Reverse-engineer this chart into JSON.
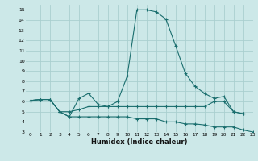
{
  "background_color": "#cce8e8",
  "grid_color": "#aacfcf",
  "line_color": "#1a6e6e",
  "xlabel": "Humidex (Indice chaleur)",
  "xlim": [
    -0.5,
    23
  ],
  "ylim": [
    3,
    15.5
  ],
  "xticks": [
    0,
    1,
    2,
    3,
    4,
    5,
    6,
    7,
    8,
    9,
    10,
    11,
    12,
    13,
    14,
    15,
    16,
    17,
    18,
    19,
    20,
    21,
    22,
    23
  ],
  "yticks": [
    3,
    4,
    5,
    6,
    7,
    8,
    9,
    10,
    11,
    12,
    13,
    14,
    15
  ],
  "curve1_x": [
    0,
    1,
    2,
    3,
    4,
    5,
    6,
    7,
    8,
    9,
    10,
    11,
    12,
    13,
    14,
    15,
    16,
    17,
    18,
    19,
    20,
    21,
    22
  ],
  "curve1_y": [
    6.1,
    6.2,
    6.2,
    5.0,
    4.5,
    6.3,
    6.8,
    5.7,
    5.5,
    6.0,
    8.5,
    15.0,
    15.0,
    14.8,
    14.1,
    11.5,
    8.8,
    7.5,
    6.8,
    6.3,
    6.5,
    5.0,
    4.8
  ],
  "curve2_x": [
    0,
    1,
    2,
    3,
    4,
    5,
    6,
    7,
    8,
    9,
    10,
    11,
    12,
    13,
    14,
    15,
    16,
    17,
    18,
    19,
    20,
    21,
    22
  ],
  "curve2_y": [
    6.1,
    6.2,
    6.2,
    5.0,
    5.0,
    5.2,
    5.5,
    5.5,
    5.5,
    5.5,
    5.5,
    5.5,
    5.5,
    5.5,
    5.5,
    5.5,
    5.5,
    5.5,
    5.5,
    6.0,
    6.0,
    5.0,
    4.8
  ],
  "curve3_x": [
    0,
    1,
    2,
    3,
    4,
    5,
    6,
    7,
    8,
    9,
    10,
    11,
    12,
    13,
    14,
    15,
    16,
    17,
    18,
    19,
    20,
    21,
    22,
    23
  ],
  "curve3_y": [
    6.1,
    6.2,
    6.2,
    5.0,
    4.5,
    4.5,
    4.5,
    4.5,
    4.5,
    4.5,
    4.5,
    4.3,
    4.3,
    4.3,
    4.0,
    4.0,
    3.8,
    3.8,
    3.7,
    3.5,
    3.5,
    3.5,
    3.2,
    3.0
  ]
}
